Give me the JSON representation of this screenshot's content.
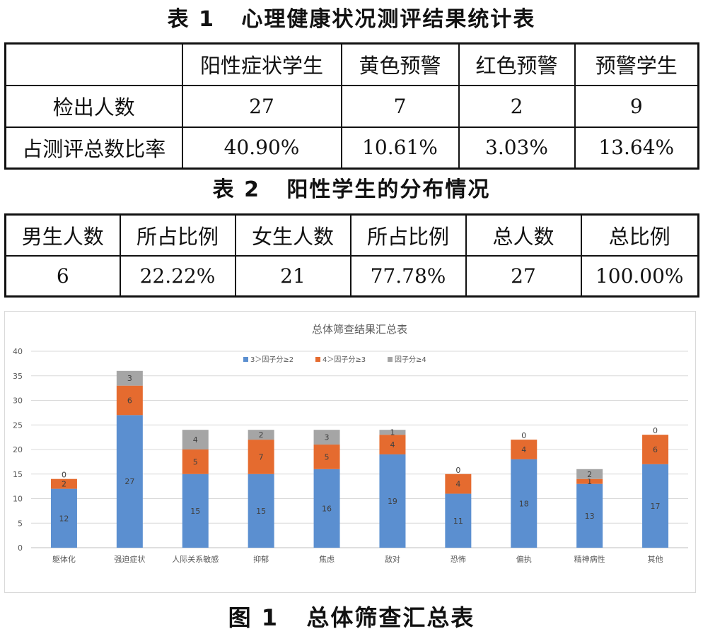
{
  "table1": {
    "caption": "表 1   心理健康状况测评结果统计表",
    "headers": [
      "",
      "阳性症状学生",
      "黄色预警",
      "红色预警",
      "预警学生"
    ],
    "rows": [
      {
        "label": "检出人数",
        "values": [
          "27",
          "7",
          "2",
          "9"
        ]
      },
      {
        "label": "占测评总数比率",
        "values": [
          "40.90%",
          "10.61%",
          "3.03%",
          "13.64%"
        ]
      }
    ]
  },
  "table2": {
    "caption": "表 2   阳性学生的分布情况",
    "headers": [
      "男生人数",
      "所占比例",
      "女生人数",
      "所占比例",
      "总人数",
      "总比例"
    ],
    "values": [
      "6",
      "22.22%",
      "21",
      "77.78%",
      "27",
      "100.00%"
    ]
  },
  "figure": {
    "caption": "图 1   总体筛查汇总表"
  },
  "chart_data": {
    "type": "bar",
    "stacked": true,
    "title": "总体筛查结果汇总表",
    "xlabel": "",
    "ylabel": "",
    "ylim": [
      0,
      40
    ],
    "yticks": [
      0,
      5,
      10,
      15,
      20,
      25,
      30,
      35,
      40
    ],
    "grid": true,
    "legend_position": "top",
    "categories": [
      "躯体化",
      "强迫症状",
      "人际关系敏感",
      "抑郁",
      "焦虑",
      "敌对",
      "恐怖",
      "偏执",
      "精神病性",
      "其他"
    ],
    "series": [
      {
        "name": "3＞因子分≥2",
        "color": "#5b8fd0",
        "values": [
          12,
          27,
          15,
          15,
          16,
          19,
          11,
          18,
          13,
          17
        ]
      },
      {
        "name": "4＞因子分≥3",
        "color": "#e56b2f",
        "values": [
          2,
          6,
          5,
          7,
          5,
          4,
          4,
          4,
          1,
          6
        ]
      },
      {
        "name": "因子分≥4",
        "color": "#a5a5a5",
        "values": [
          0,
          3,
          4,
          2,
          3,
          1,
          0,
          0,
          2,
          0
        ]
      }
    ]
  }
}
